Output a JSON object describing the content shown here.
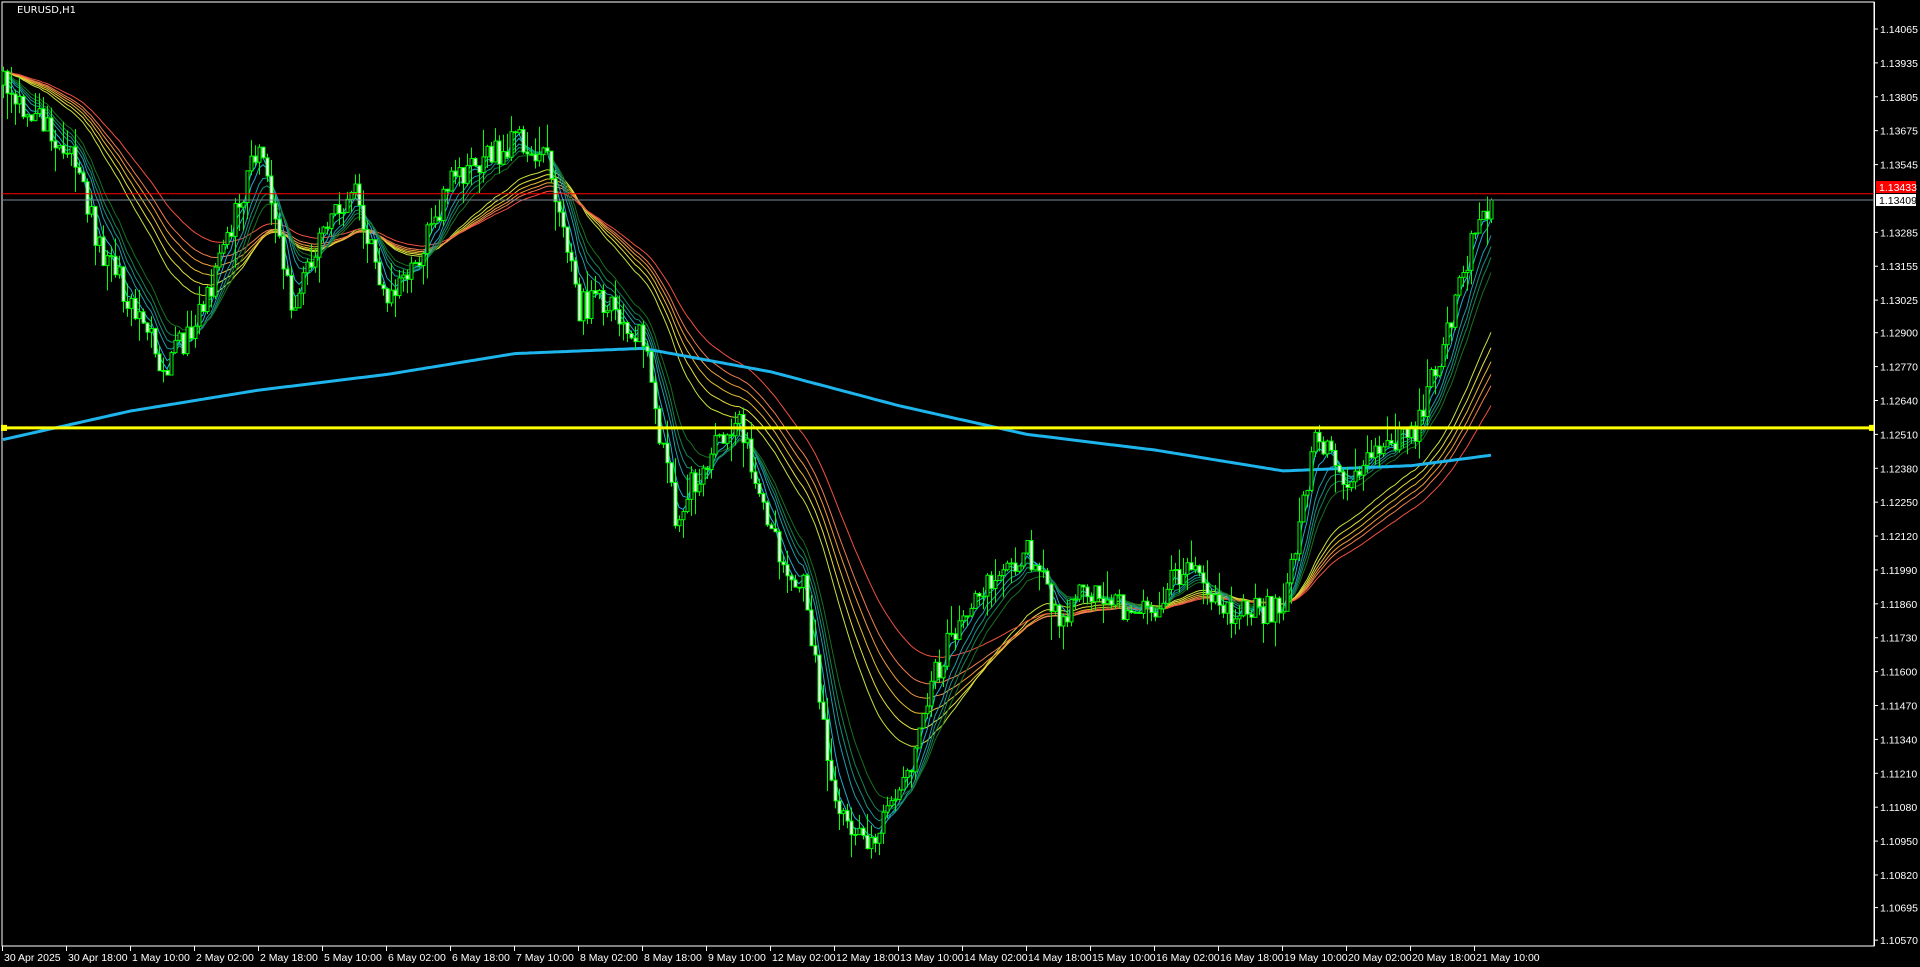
{
  "window": {
    "title": "EURUSD,H1"
  },
  "colors": {
    "background": "#000000",
    "frame": "#ffffff",
    "candle_outline": "#00ff00",
    "bull_body": "#000000",
    "bear_body": "#ffffff",
    "long_ma": "#1eb4ec",
    "horizontal_line_red": "#ff0000",
    "horizontal_line_yellow": "#ffff00",
    "bid_line": "#778899"
  },
  "chart_data": {
    "type": "candlestick",
    "symbol": "EURUSD",
    "timeframe": "H1",
    "ylim": [
      1.1051,
      1.14176
    ],
    "grid": false,
    "price_ticks": [
      "1.14065",
      "1.13935",
      "1.13805",
      "1.13675",
      "1.13545",
      "1.13285",
      "1.13155",
      "1.13025",
      "1.12900",
      "1.12770",
      "1.12640",
      "1.12510",
      "1.12380",
      "1.12250",
      "1.12120",
      "1.11990",
      "1.11860",
      "1.11730",
      "1.11600",
      "1.11470",
      "1.11340",
      "1.11210",
      "1.11080",
      "1.10950",
      "1.10820",
      "1.10695",
      "1.10570"
    ],
    "time_ticks": [
      "30 Apr 2025",
      "30 Apr 18:00",
      "1 May 10:00",
      "2 May 02:00",
      "2 May 18:00",
      "5 May 10:00",
      "6 May 02:00",
      "6 May 18:00",
      "7 May 10:00",
      "8 May 02:00",
      "8 May 18:00",
      "9 May 10:00",
      "12 May 02:00",
      "12 May 18:00",
      "13 May 10:00",
      "14 May 02:00",
      "14 May 18:00",
      "15 May 10:00",
      "16 May 02:00",
      "16 May 18:00",
      "19 May 10:00",
      "20 May 02:00",
      "20 May 18:00",
      "21 May 10:00"
    ],
    "close_path": [
      [
        "30 Apr 02:00",
        1.1385
      ],
      [
        "30 Apr 10:00",
        1.1373
      ],
      [
        "30 Apr 18:00",
        1.1361
      ],
      [
        "1 May 02:00",
        1.1324
      ],
      [
        "1 May 10:00",
        1.1302
      ],
      [
        "1 May 18:00",
        1.1277
      ],
      [
        "2 May 02:00",
        1.1293
      ],
      [
        "2 May 10:00",
        1.1324
      ],
      [
        "2 May 18:00",
        1.1366
      ],
      [
        "5 May 02:00",
        1.13
      ],
      [
        "5 May 10:00",
        1.1331
      ],
      [
        "5 May 18:00",
        1.1343
      ],
      [
        "6 May 02:00",
        1.1298
      ],
      [
        "6 May 10:00",
        1.1321
      ],
      [
        "6 May 18:00",
        1.1347
      ],
      [
        "7 May 02:00",
        1.1356
      ],
      [
        "7 May 10:00",
        1.1364
      ],
      [
        "7 May 18:00",
        1.1359
      ],
      [
        "8 May 02:00",
        1.13
      ],
      [
        "8 May 10:00",
        1.1302
      ],
      [
        "8 May 18:00",
        1.1286
      ],
      [
        "9 May 02:00",
        1.122
      ],
      [
        "9 May 10:00",
        1.1242
      ],
      [
        "9 May 18:00",
        1.1258
      ],
      [
        "12 May 02:00",
        1.1211
      ],
      [
        "12 May 10:00",
        1.1192
      ],
      [
        "12 May 18:00",
        1.111
      ],
      [
        "13 May 02:00",
        1.1093
      ],
      [
        "13 May 10:00",
        1.111
      ],
      [
        "13 May 18:00",
        1.1155
      ],
      [
        "14 May 02:00",
        1.1185
      ],
      [
        "14 May 10:00",
        1.1197
      ],
      [
        "14 May 18:00",
        1.1206
      ],
      [
        "15 May 02:00",
        1.1181
      ],
      [
        "15 May 10:00",
        1.1192
      ],
      [
        "15 May 18:00",
        1.1185
      ],
      [
        "16 May 02:00",
        1.1183
      ],
      [
        "16 May 10:00",
        1.1204
      ],
      [
        "16 May 18:00",
        1.1183
      ],
      [
        "19 May 02:00",
        1.1183
      ],
      [
        "19 May 10:00",
        1.1185
      ],
      [
        "19 May 18:00",
        1.1249
      ],
      [
        "20 May 02:00",
        1.1234
      ],
      [
        "20 May 10:00",
        1.1249
      ],
      [
        "20 May 18:00",
        1.1249
      ],
      [
        "21 May 02:00",
        1.1286
      ],
      [
        "21 May 10:00",
        1.1328
      ],
      [
        "21 May 14:00",
        1.13409
      ]
    ],
    "long_ma_path": [
      [
        "30 Apr 02:00",
        1.1249
      ],
      [
        "1 May 10:00",
        1.126
      ],
      [
        "2 May 18:00",
        1.1268
      ],
      [
        "6 May 02:00",
        1.1274
      ],
      [
        "7 May 10:00",
        1.1282
      ],
      [
        "8 May 18:00",
        1.1284
      ],
      [
        "12 May 02:00",
        1.1275
      ],
      [
        "13 May 10:00",
        1.1262
      ],
      [
        "14 May 18:00",
        1.1251
      ],
      [
        "16 May 02:00",
        1.1245
      ],
      [
        "19 May 10:00",
        1.1237
      ],
      [
        "20 May 18:00",
        1.1239
      ],
      [
        "21 May 10:00",
        1.1243
      ]
    ],
    "ma_ribbon": {
      "fast_colors": [
        "#2ab4f0",
        "#26a8d4",
        "#1f9cac",
        "#189080",
        "#128450",
        "#16701e"
      ],
      "slow_colors": [
        "#c8e03c",
        "#e6e03c",
        "#e6bc30",
        "#f09c3c",
        "#f07c50",
        "#f05040"
      ]
    },
    "levels": {
      "red_line": 1.13433,
      "yellow_line": 1.12535,
      "bid": 1.13409
    },
    "bid_label": "1.13409",
    "red_label": "1.13433"
  }
}
